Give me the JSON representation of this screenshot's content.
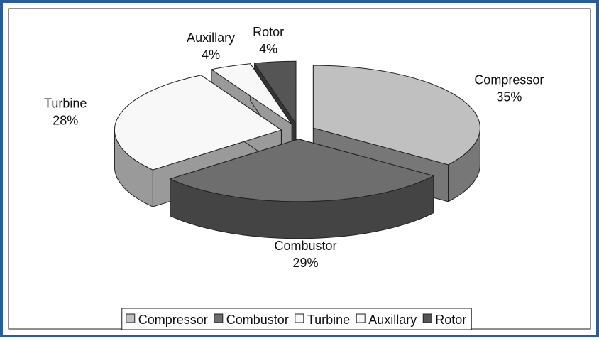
{
  "chart_data": {
    "type": "pie3d",
    "categories": [
      "Compressor",
      "Combustor",
      "Turbine",
      "Auxillary",
      "Rotor"
    ],
    "values": [
      35,
      29,
      28,
      4,
      4
    ],
    "value_labels": [
      "35%",
      "29%",
      "28%",
      "4%",
      "4%"
    ],
    "colors": [
      "#c0c0c0",
      "#6e6e6e",
      "#f8f8f8",
      "#f8f8f8",
      "#555555"
    ],
    "legend": "bottom"
  }
}
